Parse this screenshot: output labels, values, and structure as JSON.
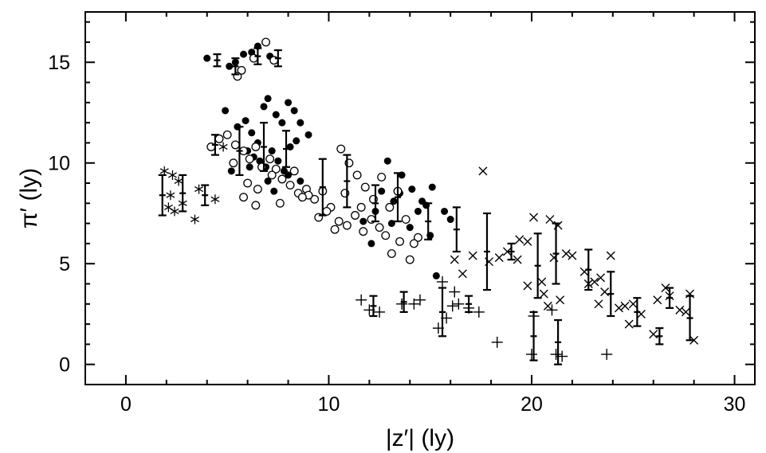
{
  "chart_data": {
    "type": "scatter",
    "title": "",
    "xlabel": "|z′| (ly)",
    "ylabel": "π′ (ly)",
    "xlim": [
      -2,
      31
    ],
    "ylim": [
      -1,
      17.5
    ],
    "xticks": [
      0,
      10,
      20,
      30
    ],
    "yticks": [
      0,
      5,
      10,
      15
    ],
    "grid": false,
    "legend": "none",
    "series": [
      {
        "marker": "filled-circle",
        "points": [
          [
            4.0,
            15.2
          ],
          [
            5.1,
            14.8
          ],
          [
            5.4,
            15.0
          ],
          [
            5.8,
            15.4
          ],
          [
            6.2,
            15.5
          ],
          [
            6.5,
            15.8
          ],
          [
            7.1,
            15.3
          ],
          [
            4.9,
            12.6
          ],
          [
            5.5,
            11.8
          ],
          [
            5.9,
            12.1
          ],
          [
            6.2,
            11.5
          ],
          [
            6.5,
            11.0
          ],
          [
            6.8,
            12.8
          ],
          [
            7.0,
            13.2
          ],
          [
            7.4,
            12.4
          ],
          [
            7.7,
            12.0
          ],
          [
            8.0,
            13.0
          ],
          [
            8.3,
            12.6
          ],
          [
            8.6,
            12.0
          ],
          [
            9.0,
            11.4
          ],
          [
            6.0,
            10.6
          ],
          [
            6.3,
            10.3
          ],
          [
            6.6,
            10.1
          ],
          [
            6.9,
            9.8
          ],
          [
            7.2,
            10.6
          ],
          [
            7.5,
            10.1
          ],
          [
            7.8,
            9.6
          ],
          [
            8.1,
            10.8
          ],
          [
            8.4,
            11.1
          ],
          [
            5.2,
            9.6
          ],
          [
            6.1,
            9.8
          ],
          [
            7.0,
            9.1
          ],
          [
            7.3,
            8.6
          ],
          [
            8.0,
            9.4
          ],
          [
            8.6,
            9.1
          ],
          [
            12.9,
            10.1
          ],
          [
            12.6,
            8.6
          ],
          [
            13.2,
            8.1
          ],
          [
            13.6,
            9.4
          ],
          [
            14.1,
            8.7
          ],
          [
            14.6,
            8.1
          ],
          [
            15.1,
            8.8
          ],
          [
            14.4,
            7.6
          ],
          [
            15.7,
            7.6
          ],
          [
            12.1,
            6.0
          ],
          [
            13.1,
            7.0
          ],
          [
            14.0,
            6.8
          ],
          [
            15.0,
            6.4
          ],
          [
            16.0,
            7.2
          ],
          [
            15.3,
            4.4
          ],
          [
            11.7,
            7.1
          ],
          [
            12.3,
            7.6
          ],
          [
            13.5,
            8.5
          ],
          [
            14.8,
            7.9
          ]
        ]
      },
      {
        "marker": "open-circle",
        "points": [
          [
            5.7,
            14.6
          ],
          [
            6.3,
            15.2
          ],
          [
            6.9,
            16.0
          ],
          [
            7.3,
            15.1
          ],
          [
            5.5,
            14.3
          ],
          [
            4.2,
            10.8
          ],
          [
            4.6,
            11.2
          ],
          [
            5.0,
            11.4
          ],
          [
            5.4,
            10.9
          ],
          [
            5.8,
            10.6
          ],
          [
            6.1,
            10.2
          ],
          [
            6.4,
            10.8
          ],
          [
            6.7,
            9.8
          ],
          [
            7.1,
            10.2
          ],
          [
            7.4,
            9.7
          ],
          [
            7.7,
            9.2
          ],
          [
            8.1,
            8.9
          ],
          [
            8.5,
            8.5
          ],
          [
            8.9,
            8.7
          ],
          [
            9.3,
            8.2
          ],
          [
            9.7,
            8.6
          ],
          [
            10.1,
            7.8
          ],
          [
            10.5,
            7.1
          ],
          [
            10.9,
            6.9
          ],
          [
            11.3,
            7.4
          ],
          [
            11.7,
            6.6
          ],
          [
            12.1,
            7.2
          ],
          [
            12.5,
            6.8
          ],
          [
            13.1,
            5.5
          ],
          [
            13.5,
            6.1
          ],
          [
            14.0,
            5.2
          ],
          [
            14.4,
            6.3
          ],
          [
            5.3,
            10.0
          ],
          [
            6.0,
            9.0
          ],
          [
            6.5,
            8.7
          ],
          [
            7.2,
            9.4
          ],
          [
            8.3,
            9.6
          ],
          [
            9.0,
            8.4
          ],
          [
            9.9,
            7.6
          ],
          [
            10.3,
            6.7
          ],
          [
            10.6,
            10.7
          ],
          [
            11.0,
            10.0
          ],
          [
            11.4,
            9.4
          ],
          [
            11.8,
            8.8
          ],
          [
            12.2,
            8.2
          ],
          [
            12.6,
            9.3
          ],
          [
            13.0,
            7.8
          ],
          [
            13.4,
            8.6
          ],
          [
            6.4,
            7.9
          ],
          [
            5.8,
            8.3
          ],
          [
            7.6,
            8.0
          ],
          [
            8.7,
            8.3
          ],
          [
            9.5,
            7.3
          ],
          [
            10.8,
            8.5
          ],
          [
            11.6,
            7.8
          ],
          [
            12.8,
            6.4
          ],
          [
            13.8,
            7.2
          ],
          [
            14.2,
            6.0
          ]
        ]
      },
      {
        "marker": "asterisk",
        "points": [
          [
            1.9,
            9.6
          ],
          [
            2.3,
            9.4
          ],
          [
            2.6,
            9.1
          ],
          [
            2.1,
            7.8
          ],
          [
            2.4,
            7.6
          ],
          [
            2.8,
            8.0
          ],
          [
            3.4,
            7.2
          ],
          [
            3.6,
            8.7
          ],
          [
            4.4,
            8.2
          ],
          [
            4.8,
            10.8
          ],
          [
            2.2,
            8.4
          ]
        ]
      },
      {
        "marker": "plus",
        "points": [
          [
            11.6,
            3.2
          ],
          [
            12.0,
            2.7
          ],
          [
            12.5,
            2.6
          ],
          [
            13.6,
            3.0
          ],
          [
            14.2,
            3.0
          ],
          [
            14.5,
            3.2
          ],
          [
            15.4,
            1.8
          ],
          [
            15.8,
            2.3
          ],
          [
            16.1,
            2.9
          ],
          [
            16.4,
            3.0
          ],
          [
            16.9,
            2.8
          ],
          [
            17.4,
            2.6
          ],
          [
            18.3,
            1.1
          ],
          [
            15.6,
            4.1
          ],
          [
            16.2,
            3.6
          ],
          [
            20.0,
            0.5
          ],
          [
            21.2,
            0.5
          ],
          [
            21.5,
            0.4
          ],
          [
            23.7,
            0.5
          ],
          [
            20.1,
            2.4
          ],
          [
            21.0,
            2.7
          ]
        ]
      },
      {
        "marker": "cross",
        "points": [
          [
            16.2,
            5.2
          ],
          [
            16.6,
            4.5
          ],
          [
            17.1,
            5.4
          ],
          [
            17.6,
            9.6
          ],
          [
            17.9,
            5.1
          ],
          [
            18.4,
            5.3
          ],
          [
            18.8,
            5.6
          ],
          [
            19.4,
            6.2
          ],
          [
            19.8,
            6.1
          ],
          [
            20.1,
            7.3
          ],
          [
            20.5,
            4.1
          ],
          [
            20.9,
            7.2
          ],
          [
            21.3,
            6.9
          ],
          [
            21.7,
            5.5
          ],
          [
            22.0,
            5.4
          ],
          [
            21.4,
            3.2
          ],
          [
            20.6,
            3.5
          ],
          [
            19.3,
            5.2
          ],
          [
            21.1,
            5.3
          ],
          [
            22.6,
            4.6
          ],
          [
            23.1,
            4.1
          ],
          [
            23.4,
            4.3
          ],
          [
            23.6,
            3.6
          ],
          [
            23.9,
            5.4
          ],
          [
            24.3,
            2.8
          ],
          [
            24.6,
            2.9
          ],
          [
            25.0,
            3.0
          ],
          [
            25.4,
            2.5
          ],
          [
            24.8,
            2.0
          ],
          [
            26.2,
            3.2
          ],
          [
            26.6,
            3.8
          ],
          [
            26.8,
            3.4
          ],
          [
            27.3,
            2.7
          ],
          [
            27.6,
            2.6
          ],
          [
            27.8,
            3.5
          ],
          [
            28.0,
            1.2
          ],
          [
            26.0,
            1.5
          ],
          [
            23.3,
            3.0
          ],
          [
            22.8,
            4.0
          ],
          [
            19.8,
            3.9
          ],
          [
            20.8,
            2.9
          ]
        ]
      },
      {
        "marker": "error-bar",
        "points": [
          [
            1.8,
            8.4,
            1.0
          ],
          [
            2.8,
            8.5,
            0.9
          ],
          [
            3.9,
            8.4,
            0.5
          ],
          [
            4.4,
            10.9,
            0.5
          ],
          [
            4.5,
            15.1,
            0.3
          ],
          [
            5.4,
            14.8,
            0.4
          ],
          [
            6.5,
            15.3,
            0.4
          ],
          [
            7.5,
            15.2,
            0.4
          ],
          [
            5.6,
            10.6,
            1.2
          ],
          [
            6.8,
            10.8,
            1.2
          ],
          [
            7.9,
            10.7,
            0.9
          ],
          [
            9.7,
            8.8,
            1.4
          ],
          [
            10.9,
            9.1,
            1.3
          ],
          [
            12.3,
            8.0,
            0.9
          ],
          [
            13.4,
            8.3,
            1.2
          ],
          [
            14.9,
            7.1,
            0.9
          ],
          [
            16.3,
            6.7,
            1.1
          ],
          [
            17.8,
            5.6,
            1.9
          ],
          [
            19.0,
            5.6,
            0.4
          ],
          [
            21.2,
            5.5,
            1.5
          ],
          [
            20.3,
            4.9,
            1.6
          ],
          [
            22.8,
            4.7,
            1.0
          ],
          [
            23.9,
            3.5,
            1.1
          ],
          [
            25.2,
            2.6,
            0.7
          ],
          [
            26.3,
            1.4,
            0.4
          ],
          [
            26.8,
            3.3,
            0.5
          ],
          [
            27.8,
            2.3,
            1.1
          ],
          [
            12.2,
            2.9,
            0.5
          ],
          [
            13.7,
            3.1,
            0.5
          ],
          [
            15.6,
            2.6,
            1.2
          ],
          [
            16.9,
            3.0,
            0.4
          ],
          [
            20.1,
            1.4,
            1.2
          ],
          [
            21.3,
            1.1,
            1.1
          ]
        ]
      }
    ]
  }
}
